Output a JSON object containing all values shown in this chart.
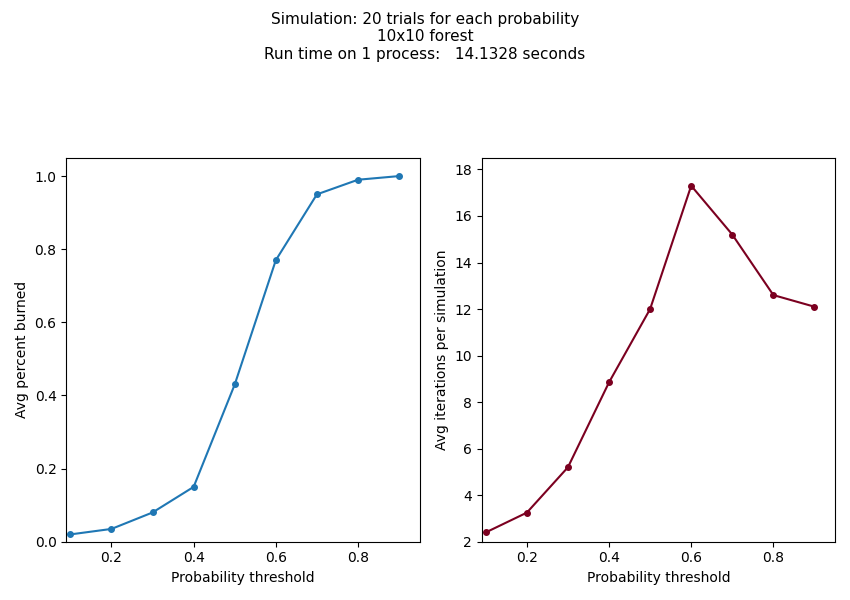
{
  "title_line1": "Simulation: 20 trials for each probability",
  "title_line2": "10x10 forest",
  "title_line3": "Run time on 1 process:   14.1328 seconds",
  "x": [
    0.1,
    0.2,
    0.3,
    0.4,
    0.5,
    0.6,
    0.7,
    0.8,
    0.9
  ],
  "y_burned": [
    0.02,
    0.035,
    0.08,
    0.15,
    0.43,
    0.77,
    0.95,
    0.99,
    1.0
  ],
  "y_iters": [
    2.4,
    3.25,
    5.2,
    8.85,
    12.0,
    17.3,
    15.2,
    12.6,
    12.1
  ],
  "color_left": "#1f77b4",
  "color_right": "#7b0020",
  "xlabel": "Probability threshold",
  "ylabel_left": "Avg percent burned",
  "ylabel_right": "Avg iterations per simulation",
  "xlim_left": [
    0.09,
    0.95
  ],
  "xlim_right": [
    0.09,
    0.95
  ],
  "ylim_left": [
    0.0,
    1.05
  ],
  "ylim_right": [
    2.0,
    18.5
  ],
  "marker": "o",
  "markersize": 4,
  "linewidth": 1.5,
  "title_fontsize": 11
}
